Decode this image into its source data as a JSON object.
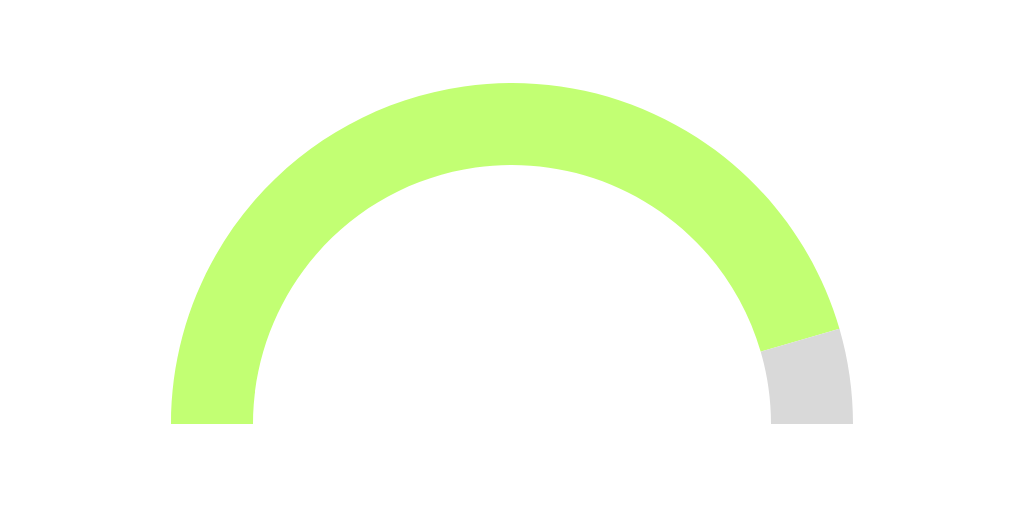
{
  "chart_data": {
    "type": "donut",
    "categories": [
      null,
      null
    ],
    "values": [
      91,
      9
    ],
    "colors": [
      "#c2ff73",
      "#d9d9d9"
    ]
  }
}
